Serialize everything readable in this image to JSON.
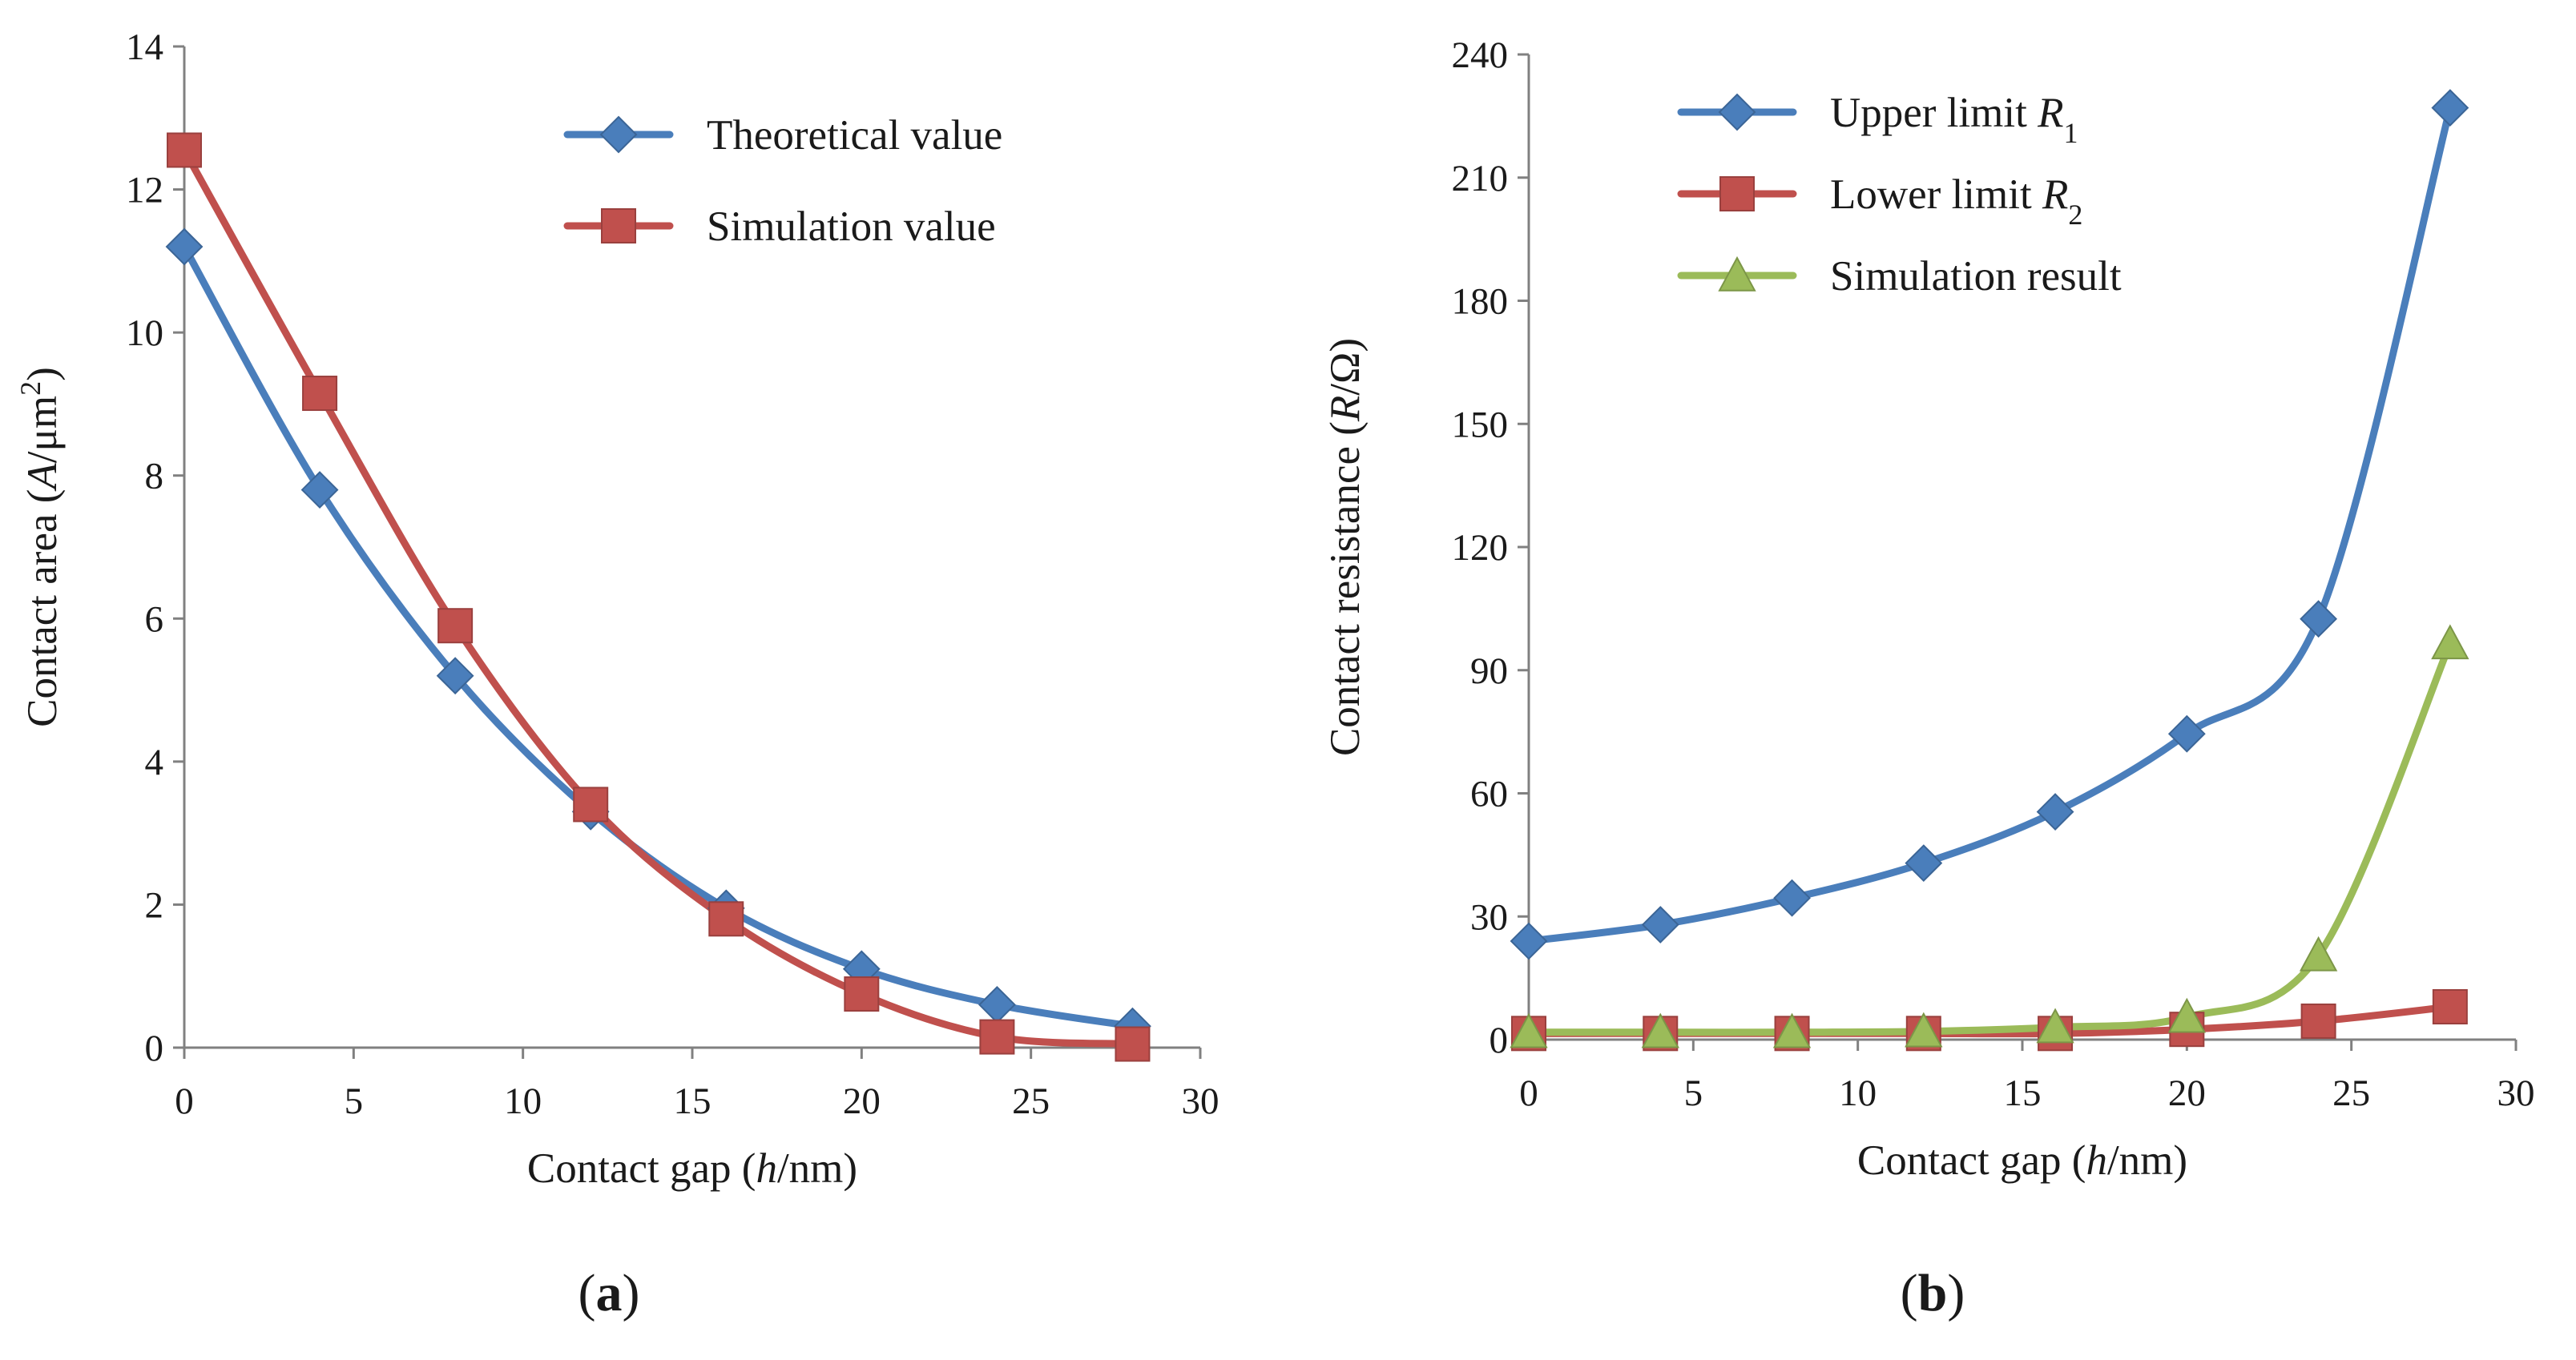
{
  "chart_data": [
    {
      "type": "line",
      "panel_label": "a",
      "title": "",
      "xlabel": {
        "pre": "Contact gap (",
        "italic": "h",
        "post": "/nm)"
      },
      "ylabel": {
        "pre": "Contact area (",
        "italic": "A",
        "post": "/μm",
        "sup": "2",
        "end": ")"
      },
      "xlim": [
        0,
        30
      ],
      "ylim": [
        0,
        14
      ],
      "x_ticks": [
        0,
        5,
        10,
        15,
        20,
        25,
        30
      ],
      "y_ticks": [
        0,
        2,
        4,
        6,
        8,
        10,
        12,
        14
      ],
      "grid": false,
      "legend_position": "top-right",
      "x": [
        0,
        4,
        8,
        12,
        16,
        20,
        24,
        28
      ],
      "series": [
        {
          "name": "Theoretical value",
          "color": "#4a7ebb",
          "marker": "diamond",
          "values": [
            11.2,
            7.8,
            5.2,
            3.3,
            1.95,
            1.1,
            0.6,
            0.3
          ]
        },
        {
          "name": "Simulation value",
          "color": "#c0504d",
          "marker": "square",
          "values": [
            12.55,
            9.15,
            5.9,
            3.4,
            1.8,
            0.75,
            0.15,
            0.05
          ]
        }
      ]
    },
    {
      "type": "line",
      "panel_label": "b",
      "title": "",
      "xlabel": {
        "pre": "Contact gap (",
        "italic": "h",
        "post": "/nm)"
      },
      "ylabel": {
        "pre": "Contact resistance (",
        "italic": "R",
        "post": "/Ω)"
      },
      "xlim": [
        0,
        30
      ],
      "ylim": [
        0,
        240
      ],
      "x_ticks": [
        0,
        5,
        10,
        15,
        20,
        25,
        30
      ],
      "y_ticks": [
        0,
        30,
        60,
        90,
        120,
        150,
        180,
        210,
        240
      ],
      "grid": false,
      "legend_position": "top-left",
      "x": [
        0,
        4,
        8,
        12,
        16,
        20,
        24,
        28
      ],
      "series": [
        {
          "name": "Upper limit R1",
          "label_text": "Upper limit ",
          "label_italic": "R",
          "label_sub": "1",
          "color": "#4a7ebb",
          "marker": "diamond",
          "values": [
            24,
            28,
            34.5,
            43,
            55.5,
            74.5,
            102.5,
            227
          ]
        },
        {
          "name": "Lower limit R2",
          "label_text": "Lower limit ",
          "label_italic": "R",
          "label_sub": "2",
          "color": "#c0504d",
          "marker": "square",
          "values": [
            1.5,
            1.5,
            1.5,
            1.5,
            1.5,
            2.5,
            4.5,
            8
          ]
        },
        {
          "name": "Simulation result",
          "label_text": "Simulation result",
          "label_italic": "",
          "label_sub": "",
          "color": "#9bbb59",
          "marker": "triangle",
          "values": [
            1.8,
            1.8,
            1.8,
            2,
            3,
            5.5,
            20.5,
            96.5
          ]
        }
      ]
    }
  ]
}
